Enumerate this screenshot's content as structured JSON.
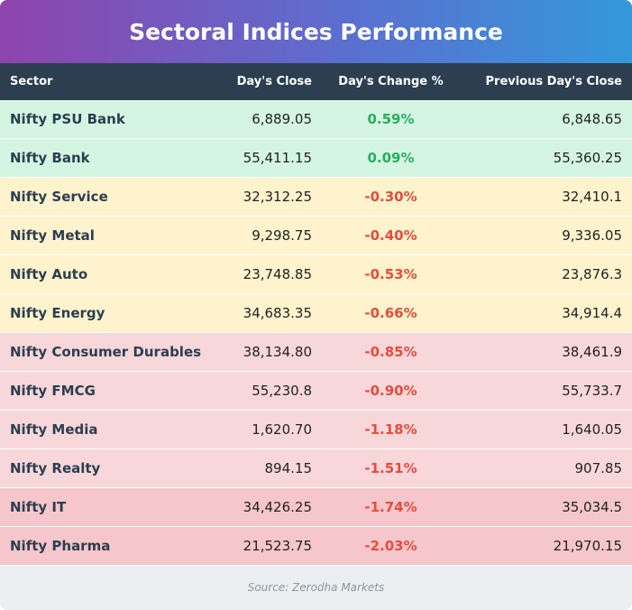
{
  "title": "Sectoral Indices Performance",
  "table": {
    "header": [
      "Sector",
      "Day's Close",
      "Day's Change %",
      "Previous Day's Close"
    ],
    "rows": [
      [
        "Nifty PSU Bank",
        "6,889.05",
        "0.59%",
        "6,848.65"
      ],
      [
        "Nifty Bank",
        "55,411.15",
        "0.09%",
        "55,360.25"
      ],
      [
        "Nifty Service",
        "32,312.25",
        "-0.30%",
        "32,410.1"
      ],
      [
        "Nifty Metal",
        "9,298.75",
        "-0.40%",
        "9,336.05"
      ],
      [
        "Nifty Auto",
        "23,748.85",
        "-0.53%",
        "23,876.3"
      ],
      [
        "Nifty Energy",
        "34,683.35",
        "-0.66%",
        "34,914.4"
      ],
      [
        "Nifty Consumer Durables",
        "38,134.80",
        "-0.85%",
        "38,461.9"
      ],
      [
        "Nifty FMCG",
        "55,230.8",
        "-0.90%",
        "55,733.7"
      ],
      [
        "Nifty Media",
        "1,620.70",
        "-1.18%",
        "1,640.05"
      ],
      [
        "Nifty Realty",
        "894.15",
        "-1.51%",
        "907.85"
      ],
      [
        "Nifty IT",
        "34,426.25",
        "-1.74%",
        "35,034.5"
      ],
      [
        "Nifty Pharma",
        "21,523.75",
        "-2.03%",
        "21,970.15"
      ]
    ]
  },
  "source": "Source: Zerodha Markets"
}
